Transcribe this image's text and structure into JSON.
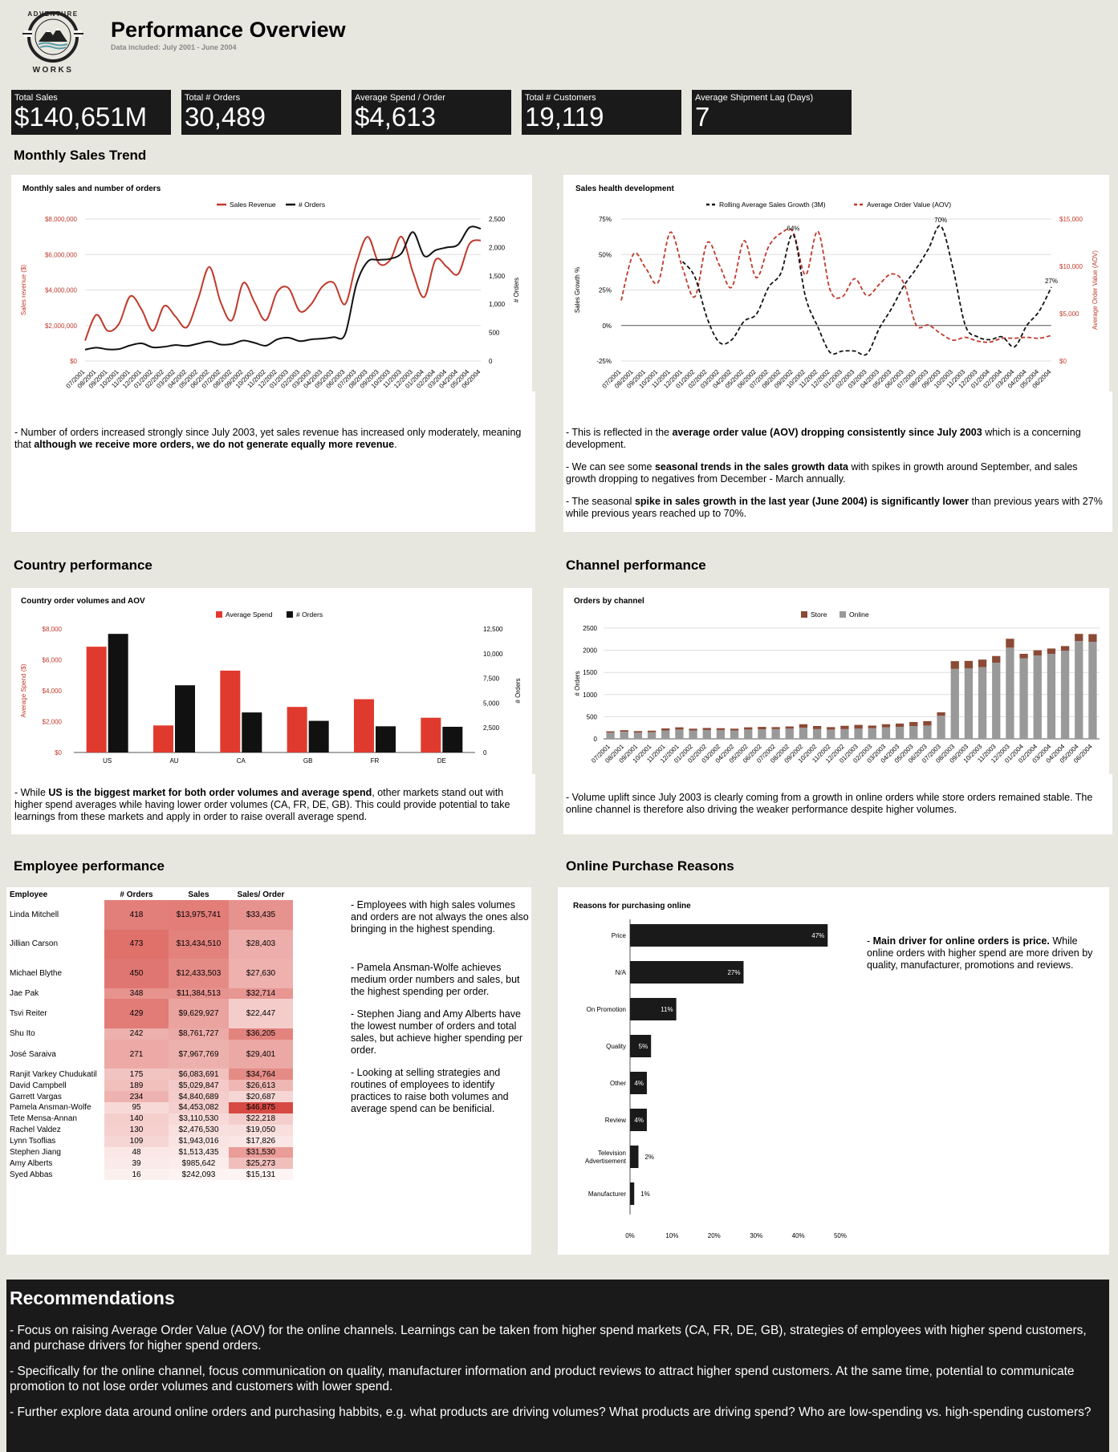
{
  "header": {
    "logo_text": "ADVENTURE WORKS",
    "title": "Performance Overview",
    "subtitle": "Data included: July 2001 - June 2004"
  },
  "kpis": [
    {
      "label": "Total Sales",
      "value": "$140,651M"
    },
    {
      "label": "Total # Orders",
      "value": "30,489"
    },
    {
      "label": "Average Spend / Order",
      "value": "$4,613"
    },
    {
      "label": "Total # Customers",
      "value": "19,119"
    },
    {
      "label": "Average Shipment Lag (Days)",
      "value": "7"
    }
  ],
  "sections": {
    "monthly": "Monthly Sales Trend",
    "country": "Country performance",
    "channel": "Channel performance",
    "employee": "Employee performance",
    "online": "Online Purchase Reasons"
  },
  "months": [
    "07/2001",
    "08/2001",
    "09/2001",
    "10/2001",
    "11/2001",
    "12/2001",
    "01/2002",
    "02/2002",
    "03/2002",
    "04/2002",
    "05/2002",
    "06/2002",
    "07/2002",
    "08/2002",
    "09/2002",
    "10/2002",
    "11/2002",
    "12/2002",
    "01/2003",
    "02/2003",
    "03/2003",
    "04/2003",
    "05/2003",
    "06/2003",
    "07/2003",
    "08/2003",
    "09/2003",
    "10/2003",
    "11/2003",
    "12/2003",
    "01/2004",
    "02/2004",
    "03/2004",
    "04/2004",
    "05/2004",
    "06/2004"
  ],
  "chart_data": [
    {
      "type": "line",
      "title": "Monthly sales and number of orders",
      "ylabel": "Sales revenue ($)",
      "y2label": "# Orders",
      "ylim": [
        0,
        8000000
      ],
      "y2lim": [
        0,
        2500
      ],
      "yticks": [
        "$8,000,000",
        "$6,000,000",
        "$4,000,000",
        "$2,000,000",
        "$0"
      ],
      "y2ticks": [
        "2,500",
        "2,000",
        "1,500",
        "1,000",
        "500",
        "0"
      ],
      "series": [
        {
          "name": "Sales Revenue",
          "color": "#c0392b",
          "values": [
            1150000,
            2600000,
            1700000,
            2100000,
            3650000,
            2900000,
            1700000,
            3100000,
            2500000,
            1900000,
            3500000,
            5300000,
            3300000,
            2300000,
            4400000,
            3300000,
            2300000,
            3900000,
            4100000,
            2800000,
            3200000,
            4200000,
            4400000,
            3200000,
            5500000,
            7000000,
            5500000,
            5700000,
            7000000,
            5000000,
            3600000,
            5700000,
            5300000,
            4900000,
            6600000,
            6800000
          ]
        },
        {
          "name": "# Orders",
          "color": "#111111",
          "values": [
            200,
            235,
            205,
            210,
            275,
            310,
            240,
            250,
            280,
            265,
            305,
            345,
            290,
            300,
            360,
            320,
            270,
            380,
            410,
            350,
            380,
            395,
            420,
            470,
            1350,
            1750,
            1780,
            1800,
            1900,
            2270,
            1850,
            1950,
            2000,
            2050,
            2350,
            2330
          ]
        }
      ]
    },
    {
      "type": "line",
      "title": "Sales health development",
      "ylabel": "Sales Growth %",
      "y2label": "Average Order Value (AOV)",
      "ylim": [
        -25,
        75
      ],
      "y2lim": [
        0,
        15000
      ],
      "yticks": [
        "75%",
        "50%",
        "25%",
        "0%",
        "-25%"
      ],
      "y2ticks": [
        "$15,000",
        "$10,000",
        "$5,000",
        "$0"
      ],
      "annotations": [
        "64%",
        "70%",
        "27%"
      ],
      "series": [
        {
          "name": "Rolling Average Sales Growth (3M)",
          "color": "#111111",
          "values": [
            null,
            null,
            null,
            null,
            null,
            45,
            34,
            5,
            -12,
            -10,
            3,
            8,
            27,
            37,
            64,
            20,
            -1,
            -19,
            -18,
            -18,
            -20,
            -2,
            12,
            28,
            40,
            54,
            70,
            40,
            0,
            -8,
            -10,
            -8,
            -15,
            0,
            10,
            27
          ]
        },
        {
          "name": "Average Order Value (AOV)",
          "color": "#c0392b",
          "values": [
            6400,
            11300,
            9800,
            8300,
            13600,
            9800,
            6800,
            12500,
            10100,
            7800,
            12700,
            8800,
            12100,
            13500,
            13600,
            9100,
            13700,
            7500,
            6800,
            8700,
            6900,
            8100,
            9200,
            8200,
            3800,
            3800,
            2900,
            2200,
            2500,
            2100,
            2000,
            2400,
            2400,
            2500,
            2400,
            2700
          ]
        }
      ]
    },
    {
      "type": "bar",
      "title": "Country order volumes and AOV",
      "categories": [
        "US",
        "AU",
        "CA",
        "GB",
        "FR",
        "DE"
      ],
      "ylabel": "Average Spend ($)",
      "y2label": "# Orders",
      "ylim": [
        0,
        8000
      ],
      "y2lim": [
        0,
        12500
      ],
      "yticks": [
        "$8,000",
        "$6,000",
        "$4,000",
        "$2,000",
        "$0"
      ],
      "y2ticks": [
        "12,500",
        "10,000",
        "7,500",
        "5,000",
        "2,500",
        "0"
      ],
      "series": [
        {
          "name": "Average Spend",
          "color": "#e03a2e",
          "values": [
            6850,
            1750,
            5300,
            2950,
            3450,
            2250
          ]
        },
        {
          "name": "# Orders",
          "color": "#111111",
          "values": [
            12000,
            6800,
            4050,
            3200,
            2650,
            2600
          ]
        }
      ]
    },
    {
      "type": "bar",
      "title": "Orders by channel",
      "stacked": true,
      "ylabel": "# Orders",
      "ylim": [
        0,
        2500
      ],
      "yticks": [
        "2500",
        "2000",
        "1500",
        "1000",
        "500",
        "0"
      ],
      "series": [
        {
          "name": "Store",
          "color": "#8b4a35",
          "values": [
            30,
            35,
            35,
            35,
            45,
            50,
            40,
            45,
            40,
            40,
            50,
            55,
            45,
            50,
            80,
            70,
            55,
            75,
            85,
            60,
            70,
            75,
            90,
            100,
            80,
            175,
            170,
            170,
            150,
            200,
            100,
            120,
            120,
            105,
            160,
            175
          ]
        },
        {
          "name": "Online",
          "color": "#999999",
          "values": [
            140,
            160,
            140,
            150,
            190,
            210,
            190,
            200,
            200,
            190,
            210,
            215,
            220,
            230,
            250,
            220,
            210,
            220,
            230,
            240,
            260,
            270,
            290,
            300,
            520,
            1580,
            1590,
            1620,
            1720,
            2060,
            1820,
            1880,
            1920,
            1990,
            2210,
            2190
          ]
        }
      ]
    },
    {
      "type": "bar",
      "orientation": "horizontal",
      "title": "Reasons for purchasing online",
      "categories": [
        "Price",
        "N/A",
        "On Promotion",
        "Quality",
        "Other",
        "Review",
        "Television Advertisement",
        "Manufacturer"
      ],
      "values": [
        47,
        27,
        11,
        5,
        4,
        4,
        2,
        1
      ],
      "labels": [
        "47%",
        "27%",
        "11%",
        "5%",
        "4%",
        "4%",
        "2%",
        "1%"
      ],
      "xticks": [
        "0%",
        "10%",
        "20%",
        "30%",
        "40%",
        "50%"
      ],
      "xlim": [
        0,
        50
      ]
    }
  ],
  "notes": {
    "monthly_left": [
      {
        "pre": "- Number of orders increased strongly since July 2003, yet sales revenue has increased only moderately, meaning that ",
        "bold": "although we receive more orders, we do not generate equally more revenue",
        "post": "."
      }
    ],
    "monthly_right": [
      {
        "pre": "- This is reflected in the ",
        "bold": "average order value (AOV) dropping consistently since July 2003",
        "post": " which is a concerning development."
      },
      {
        "pre": "- We can see some ",
        "bold": "seasonal trends in the sales growth data",
        "post": " with spikes in growth around September, and sales growth dropping to negatives from December - March annually."
      },
      {
        "pre": "- The seasonal ",
        "bold": "spike in sales growth in the last year (June 2004) is significantly lower",
        "post": " than previous years with 27% while previous years reached up to 70%."
      }
    ],
    "country": [
      {
        "pre": "- While ",
        "bold": "US is the biggest market for both order volumes and average spend",
        "post": ", other markets stand out with higher spend averages while having lower order volumes (CA, FR, DE, GB). This could provide potential to take learnings from these markets and apply in order to raise overall average spend."
      }
    ],
    "channel": [
      {
        "pre": "- Volume uplift since July 2003 is clearly coming from a growth in online orders while store orders remained stable. The online channel is therefore also driving the weaker performance despite higher volumes.",
        "bold": "",
        "post": ""
      }
    ],
    "employee": [
      {
        "pre": "- Employees with high sales volumes and orders are not always the ones also bringing in the highest spending.",
        "bold": "",
        "post": ""
      },
      {
        "pre": "- Pamela Ansman-Wolfe achieves medium order numbers and sales, but the highest spending per order.",
        "bold": "",
        "post": ""
      },
      {
        "pre": "- Stephen Jiang and Amy Alberts have the lowest number of orders and total sales, but achieve higher spending per order.",
        "bold": "",
        "post": ""
      },
      {
        "pre": "- Looking at selling strategies and routines of employees to identify practices to raise both volumes and average spend can be benificial.",
        "bold": "",
        "post": ""
      }
    ],
    "online": [
      {
        "pre": "- ",
        "bold": "Main driver for online orders is price.",
        "post": " While online orders with higher spend are more driven by quality, manufacturer, promotions and reviews."
      }
    ]
  },
  "employees": {
    "headers": [
      "Employee",
      "# Orders",
      "Sales",
      "Sales/ Order"
    ],
    "rows": [
      {
        "name": "Linda Mitchell",
        "orders": "418",
        "sales": "$13,975,741",
        "spo": "$33,435",
        "o": 418,
        "s": 13975741,
        "p": 33435,
        "tall": true
      },
      {
        "name": "Jillian Carson",
        "orders": "473",
        "sales": "$13,434,510",
        "spo": "$28,403",
        "o": 473,
        "s": 13434510,
        "p": 28403,
        "tall": true
      },
      {
        "name": "Michael Blythe",
        "orders": "450",
        "sales": "$12,433,503",
        "spo": "$27,630",
        "o": 450,
        "s": 12433503,
        "p": 27630,
        "tall": true
      },
      {
        "name": "Jae Pak",
        "orders": "348",
        "sales": "$11,384,513",
        "spo": "$32,714",
        "o": 348,
        "s": 11384513,
        "p": 32714,
        "tall": false
      },
      {
        "name": "Tsvi Reiter",
        "orders": "429",
        "sales": "$9,629,927",
        "spo": "$22,447",
        "o": 429,
        "s": 9629927,
        "p": 22447,
        "tall": true
      },
      {
        "name": "Shu Ito",
        "orders": "242",
        "sales": "$8,761,727",
        "spo": "$36,205",
        "o": 242,
        "s": 8761727,
        "p": 36205,
        "tall": false
      },
      {
        "name": "José Saraiva",
        "orders": "271",
        "sales": "$7,967,769",
        "spo": "$29,401",
        "o": 271,
        "s": 7967769,
        "p": 29401,
        "tall": true
      },
      {
        "name": "Ranjit Varkey Chudukatil",
        "orders": "175",
        "sales": "$6,083,691",
        "spo": "$34,764",
        "o": 175,
        "s": 6083691,
        "p": 34764,
        "tall": false
      },
      {
        "name": "David Campbell",
        "orders": "189",
        "sales": "$5,029,847",
        "spo": "$26,613",
        "o": 189,
        "s": 5029847,
        "p": 26613,
        "tall": false
      },
      {
        "name": "Garrett Vargas",
        "orders": "234",
        "sales": "$4,840,689",
        "spo": "$20,687",
        "o": 234,
        "s": 4840689,
        "p": 20687,
        "tall": false
      },
      {
        "name": "Pamela Ansman-Wolfe",
        "orders": "95",
        "sales": "$4,453,082",
        "spo": "$46,875",
        "o": 95,
        "s": 4453082,
        "p": 46875,
        "tall": false
      },
      {
        "name": "Tete Mensa-Annan",
        "orders": "140",
        "sales": "$3,110,530",
        "spo": "$22,218",
        "o": 140,
        "s": 3110530,
        "p": 22218,
        "tall": false
      },
      {
        "name": "Rachel Valdez",
        "orders": "130",
        "sales": "$2,476,530",
        "spo": "$19,050",
        "o": 130,
        "s": 2476530,
        "p": 19050,
        "tall": false
      },
      {
        "name": "Lynn Tsoflias",
        "orders": "109",
        "sales": "$1,943,016",
        "spo": "$17,826",
        "o": 109,
        "s": 1943016,
        "p": 17826,
        "tall": false
      },
      {
        "name": "Stephen Jiang",
        "orders": "48",
        "sales": "$1,513,435",
        "spo": "$31,530",
        "o": 48,
        "s": 1513435,
        "p": 31530,
        "tall": false
      },
      {
        "name": "Amy Alberts",
        "orders": "39",
        "sales": "$985,642",
        "spo": "$25,273",
        "o": 39,
        "s": 985642,
        "p": 25273,
        "tall": false
      },
      {
        "name": "Syed Abbas",
        "orders": "16",
        "sales": "$242,093",
        "spo": "$15,131",
        "o": 16,
        "s": 242093,
        "p": 15131,
        "tall": false
      }
    ]
  },
  "recommendations": {
    "title": "Recommendations",
    "items": [
      "- Focus on raising Average Order Value (AOV)  for the online channels. Learnings can be taken from higher spend markets (CA, FR, DE, GB), strategies of employees with higher spend customers, and purchase drivers for higher spend orders.",
      "- Specifically for the online channel, focus communication on quality, manufacturer information and product reviews to attract higher spend customers. At the same time, potential to communicate promotion to not lose order volumes and customers with lower spend.",
      "- Further explore data around online orders and purchasing habbits, e.g. what products are driving volumes? What products are driving spend? Who are low-spending vs. high-spending customers?"
    ]
  }
}
